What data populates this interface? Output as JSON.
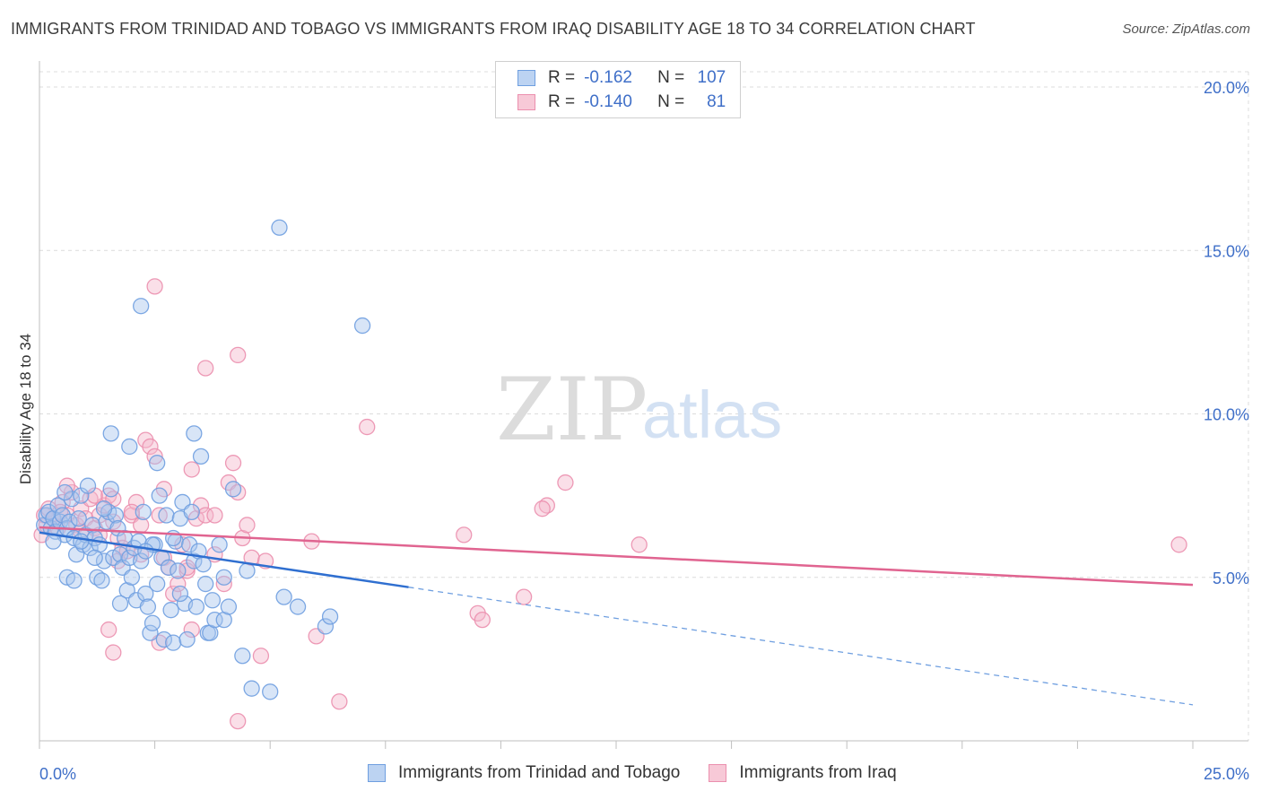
{
  "title": "IMMIGRANTS FROM TRINIDAD AND TOBAGO VS IMMIGRANTS FROM IRAQ DISABILITY AGE 18 TO 34 CORRELATION CHART",
  "source": "Source: ZipAtlas.com",
  "watermark": {
    "zip": "ZIP",
    "atlas": "atlas"
  },
  "legend": {
    "rows": [
      {
        "r_label": "R =",
        "r_value": "-0.162",
        "n_label": "N =",
        "n_value": "107"
      },
      {
        "r_label": "R =",
        "r_value": "-0.140",
        "n_label": "N =",
        "n_value": "81"
      }
    ]
  },
  "colors": {
    "blue_fill": "#a9c6ee",
    "blue_stroke": "#6f9fe0",
    "blue_line": "#2f6fd0",
    "pink_fill": "#f4b8cb",
    "pink_stroke": "#eb8fae",
    "pink_line": "#e06490",
    "tick_text": "#3f6fc8",
    "grid": "#dcdcdc"
  },
  "chart_data": {
    "type": "scatter",
    "title": "IMMIGRANTS FROM TRINIDAD AND TOBAGO VS IMMIGRANTS FROM IRAQ DISABILITY AGE 18 TO 34 CORRELATION CHART",
    "xlabel": "",
    "ylabel": "Disability Age 18 to 34",
    "xlim": [
      0,
      25
    ],
    "ylim": [
      0,
      20.5
    ],
    "x_tick_labels": [
      "0.0%",
      "25.0%"
    ],
    "y_ticks": [
      5,
      10,
      15,
      20
    ],
    "y_tick_labels": [
      "5.0%",
      "10.0%",
      "15.0%",
      "20.0%"
    ],
    "legend_position": "top-center",
    "series": [
      {
        "name": "Immigrants from Trinidad and Tobago",
        "color": "blue",
        "trend_solid": {
          "x": [
            0,
            8.0
          ],
          "y": [
            6.37,
            4.7
          ]
        },
        "trend_dashed": {
          "x": [
            8.0,
            25
          ],
          "y": [
            4.7,
            1.1
          ]
        },
        "points": [
          [
            0.1,
            6.6
          ],
          [
            0.15,
            6.9
          ],
          [
            0.2,
            7.0
          ],
          [
            0.25,
            6.5
          ],
          [
            0.3,
            6.8
          ],
          [
            0.35,
            6.4
          ],
          [
            0.4,
            7.2
          ],
          [
            0.45,
            6.7
          ],
          [
            0.5,
            6.9
          ],
          [
            0.55,
            6.3
          ],
          [
            0.6,
            6.5
          ],
          [
            0.65,
            6.7
          ],
          [
            0.7,
            7.4
          ],
          [
            0.75,
            6.2
          ],
          [
            0.8,
            5.7
          ],
          [
            0.85,
            6.8
          ],
          [
            0.9,
            7.5
          ],
          [
            0.95,
            6.0
          ],
          [
            1.0,
            6.3
          ],
          [
            1.05,
            7.8
          ],
          [
            1.1,
            5.9
          ],
          [
            1.15,
            6.6
          ],
          [
            1.2,
            6.2
          ],
          [
            1.25,
            5.0
          ],
          [
            1.3,
            6.0
          ],
          [
            1.35,
            4.9
          ],
          [
            1.4,
            5.5
          ],
          [
            1.45,
            6.7
          ],
          [
            1.5,
            7.0
          ],
          [
            1.55,
            7.7
          ],
          [
            1.6,
            5.6
          ],
          [
            1.65,
            6.9
          ],
          [
            1.7,
            6.5
          ],
          [
            1.75,
            5.7
          ],
          [
            1.8,
            5.3
          ],
          [
            1.85,
            6.2
          ],
          [
            1.9,
            4.6
          ],
          [
            1.95,
            5.6
          ],
          [
            2.0,
            5.0
          ],
          [
            2.05,
            5.9
          ],
          [
            2.1,
            4.3
          ],
          [
            2.15,
            6.1
          ],
          [
            2.2,
            5.5
          ],
          [
            2.25,
            7.0
          ],
          [
            2.3,
            4.5
          ],
          [
            2.35,
            4.1
          ],
          [
            2.4,
            3.3
          ],
          [
            2.45,
            3.6
          ],
          [
            2.5,
            6.0
          ],
          [
            2.55,
            4.8
          ],
          [
            2.6,
            7.5
          ],
          [
            2.65,
            5.6
          ],
          [
            2.7,
            3.1
          ],
          [
            2.75,
            6.9
          ],
          [
            2.8,
            5.3
          ],
          [
            2.85,
            4.0
          ],
          [
            2.9,
            3.0
          ],
          [
            2.95,
            6.1
          ],
          [
            3.0,
            5.2
          ],
          [
            3.05,
            6.8
          ],
          [
            3.1,
            7.3
          ],
          [
            3.15,
            4.2
          ],
          [
            3.2,
            3.1
          ],
          [
            3.25,
            6.0
          ],
          [
            3.3,
            7.0
          ],
          [
            3.35,
            5.5
          ],
          [
            3.4,
            4.1
          ],
          [
            3.45,
            5.8
          ],
          [
            3.5,
            8.7
          ],
          [
            3.55,
            5.4
          ],
          [
            3.6,
            4.8
          ],
          [
            3.65,
            3.3
          ],
          [
            3.7,
            3.3
          ],
          [
            3.75,
            4.3
          ],
          [
            3.8,
            3.7
          ],
          [
            3.9,
            6.0
          ],
          [
            4.0,
            3.7
          ],
          [
            4.1,
            4.1
          ],
          [
            4.2,
            7.7
          ],
          [
            4.4,
            2.6
          ],
          [
            4.5,
            5.2
          ],
          [
            4.6,
            1.6
          ],
          [
            5.0,
            1.5
          ],
          [
            5.3,
            4.4
          ],
          [
            5.6,
            4.1
          ],
          [
            6.2,
            3.5
          ],
          [
            6.3,
            3.8
          ],
          [
            7.0,
            12.7
          ],
          [
            5.2,
            15.7
          ],
          [
            2.2,
            13.3
          ],
          [
            1.55,
            9.4
          ],
          [
            1.95,
            9.0
          ],
          [
            2.55,
            8.5
          ],
          [
            3.35,
            9.4
          ],
          [
            0.6,
            5.0
          ],
          [
            0.75,
            4.9
          ],
          [
            1.2,
            5.6
          ],
          [
            3.05,
            4.5
          ],
          [
            2.45,
            6.0
          ],
          [
            1.75,
            4.2
          ],
          [
            0.3,
            6.1
          ],
          [
            0.55,
            7.6
          ],
          [
            0.9,
            6.1
          ],
          [
            1.4,
            7.1
          ],
          [
            2.3,
            5.8
          ],
          [
            4.0,
            5.0
          ],
          [
            2.9,
            6.2
          ]
        ]
      },
      {
        "name": "Immigrants from Iraq",
        "color": "pink",
        "trend_solid": {
          "x": [
            0,
            25
          ],
          "y": [
            6.53,
            4.77
          ]
        },
        "points": [
          [
            0.05,
            6.3
          ],
          [
            0.1,
            6.9
          ],
          [
            0.15,
            6.6
          ],
          [
            0.2,
            7.1
          ],
          [
            0.3,
            6.8
          ],
          [
            0.4,
            6.5
          ],
          [
            0.5,
            7.3
          ],
          [
            0.6,
            6.9
          ],
          [
            0.7,
            7.6
          ],
          [
            0.8,
            6.6
          ],
          [
            0.9,
            7.1
          ],
          [
            1.0,
            6.8
          ],
          [
            1.1,
            7.4
          ],
          [
            1.2,
            6.5
          ],
          [
            1.3,
            6.9
          ],
          [
            1.4,
            7.2
          ],
          [
            1.5,
            7.5
          ],
          [
            1.6,
            6.7
          ],
          [
            1.7,
            6.2
          ],
          [
            1.8,
            5.9
          ],
          [
            1.9,
            5.8
          ],
          [
            2.0,
            6.9
          ],
          [
            2.1,
            7.3
          ],
          [
            2.2,
            5.7
          ],
          [
            2.3,
            9.2
          ],
          [
            2.4,
            9.0
          ],
          [
            2.5,
            8.7
          ],
          [
            2.6,
            6.9
          ],
          [
            2.7,
            5.6
          ],
          [
            2.8,
            5.3
          ],
          [
            2.9,
            4.5
          ],
          [
            3.0,
            4.8
          ],
          [
            3.1,
            6.0
          ],
          [
            3.2,
            5.2
          ],
          [
            3.3,
            8.3
          ],
          [
            3.4,
            6.8
          ],
          [
            3.5,
            7.2
          ],
          [
            3.6,
            6.9
          ],
          [
            3.8,
            5.7
          ],
          [
            4.0,
            4.8
          ],
          [
            4.1,
            7.9
          ],
          [
            4.2,
            8.5
          ],
          [
            4.4,
            6.2
          ],
          [
            4.6,
            5.6
          ],
          [
            4.9,
            5.5
          ],
          [
            4.5,
            6.6
          ],
          [
            3.6,
            11.4
          ],
          [
            4.3,
            11.8
          ],
          [
            2.5,
            13.9
          ],
          [
            7.1,
            9.6
          ],
          [
            11.4,
            7.9
          ],
          [
            11.0,
            7.2
          ],
          [
            10.9,
            7.1
          ],
          [
            13.0,
            6.0
          ],
          [
            24.7,
            6.0
          ],
          [
            9.2,
            6.3
          ],
          [
            5.9,
            6.1
          ],
          [
            10.5,
            4.4
          ],
          [
            9.5,
            3.9
          ],
          [
            9.6,
            3.7
          ],
          [
            6.0,
            3.2
          ],
          [
            4.8,
            2.6
          ],
          [
            4.3,
            0.6
          ],
          [
            6.5,
            1.2
          ],
          [
            2.6,
            3.0
          ],
          [
            1.6,
            2.7
          ],
          [
            3.3,
            3.4
          ],
          [
            1.5,
            3.4
          ],
          [
            0.6,
            7.8
          ],
          [
            1.2,
            7.5
          ],
          [
            2.0,
            7.0
          ],
          [
            1.6,
            7.4
          ],
          [
            3.8,
            6.9
          ],
          [
            2.2,
            6.6
          ],
          [
            0.9,
            6.4
          ],
          [
            1.3,
            6.3
          ],
          [
            2.7,
            7.7
          ],
          [
            4.3,
            7.6
          ],
          [
            3.2,
            5.3
          ],
          [
            1.7,
            5.5
          ],
          [
            0.45,
            7.0
          ]
        ]
      }
    ]
  },
  "bottom_legend": [
    {
      "label": "Immigrants from Trinidad and Tobago"
    },
    {
      "label": "Immigrants from Iraq"
    }
  ]
}
